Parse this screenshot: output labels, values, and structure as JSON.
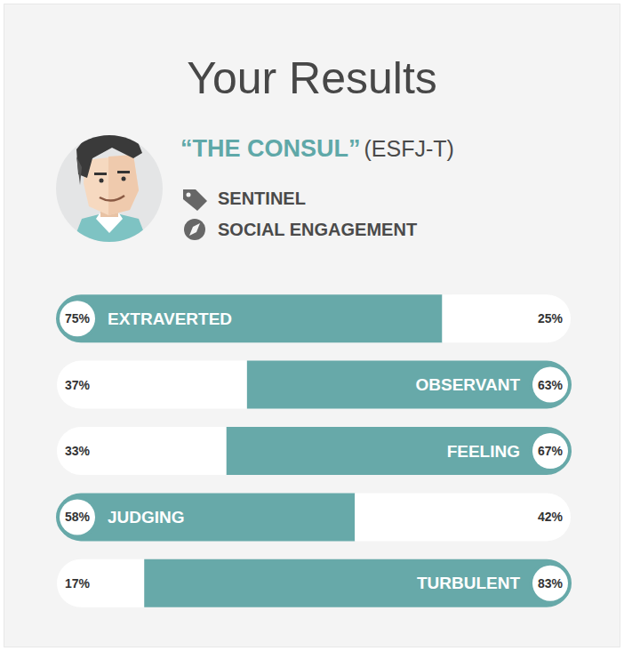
{
  "header": {
    "title": "Your Results",
    "type_name": "“THE CONSUL”",
    "type_code": "(ESFJ-T)",
    "role": "SENTINEL",
    "strategy": "SOCIAL ENGAGEMENT"
  },
  "chart_data": {
    "type": "bar",
    "orientation": "horizontal",
    "stacked": true,
    "color": "#67a9a9",
    "data_labels": true,
    "tick_labels": false,
    "grid": false,
    "xlim": [
      0,
      100
    ],
    "rows": [
      {
        "trait": "EXTRAVERTED",
        "values": [
          75,
          25
        ],
        "value_labels": [
          "75%",
          "25%"
        ]
      },
      {
        "trait": "OBSERVANT",
        "values": [
          37,
          63
        ],
        "value_labels": [
          "37%",
          "63%"
        ]
      },
      {
        "trait": "FEELING",
        "values": [
          33,
          67
        ],
        "value_labels": [
          "33%",
          "67%"
        ]
      },
      {
        "trait": "JUDGING",
        "values": [
          58,
          42
        ],
        "value_labels": [
          "58%",
          "42%"
        ]
      },
      {
        "trait": "TURBULENT",
        "values": [
          17,
          83
        ],
        "value_labels": [
          "17%",
          "83%"
        ]
      }
    ]
  }
}
